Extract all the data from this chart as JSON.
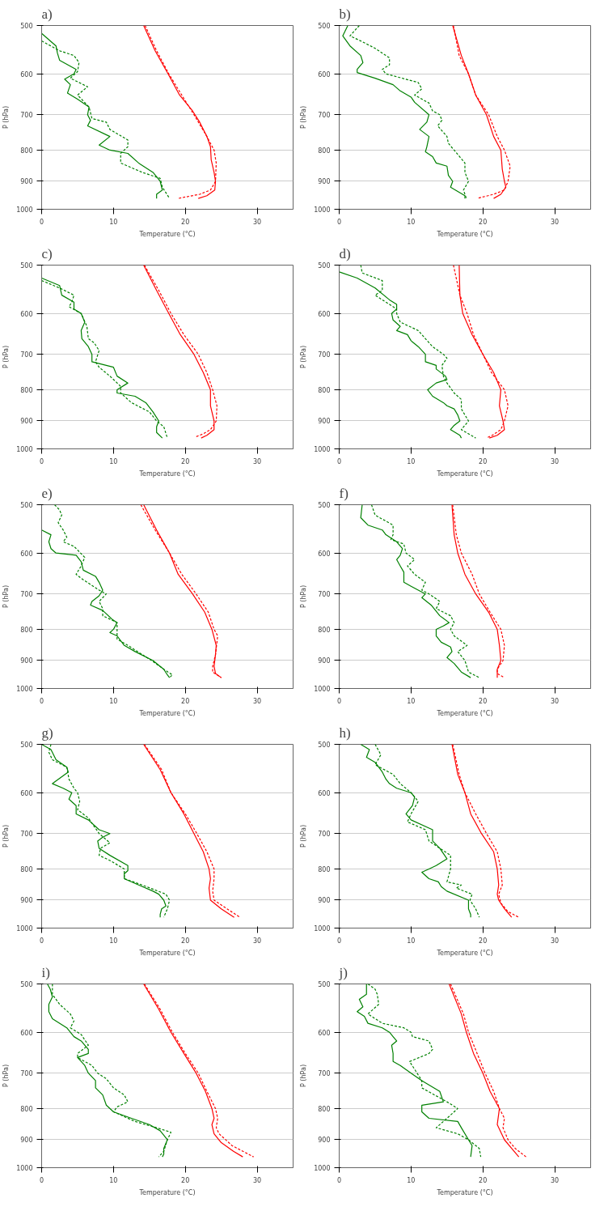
{
  "chart_data": [
    {
      "type": "line",
      "title": "a)",
      "xlabel": "Temperature (°C)",
      "ylabel": "P (hPa)",
      "xlim": [
        0,
        35
      ],
      "xticks": [
        0,
        10,
        20,
        30
      ],
      "ylim": [
        1000,
        500
      ],
      "yticks": [
        500,
        600,
        700,
        800,
        900,
        1000
      ],
      "log": "y",
      "grid": "y",
      "series": [
        {
          "color": "#008000",
          "line_style": "solid",
          "x": [
            0,
            2,
            2.2,
            2.5,
            4.8,
            4.5,
            3.2,
            4,
            3.6,
            5,
            6.6,
            6.4,
            6.8,
            6.4,
            9.5,
            8,
            9.5,
            12,
            13.5,
            15.5,
            16.5,
            16.8,
            16,
            16
          ],
          "values": [
            515,
            540,
            555,
            570,
            590,
            600,
            612,
            625,
            645,
            660,
            680,
            700,
            715,
            730,
            760,
            785,
            800,
            810,
            840,
            870,
            900,
            930,
            945,
            960
          ]
        },
        {
          "color": "#008000",
          "line_style": "dashed",
          "x": [
            0,
            2.5,
            4.5,
            5.2,
            5,
            4,
            6.4,
            5,
            6.6,
            7,
            9,
            9.5,
            12,
            12,
            11,
            11,
            14,
            16.5,
            16.8,
            17.8
          ],
          "values": [
            530,
            550,
            560,
            575,
            595,
            610,
            630,
            650,
            680,
            710,
            720,
            740,
            770,
            790,
            810,
            840,
            870,
            890,
            920,
            960
          ]
        },
        {
          "color": "#ff0000",
          "line_style": "solid",
          "x": [
            14.2,
            15.8,
            17.6,
            19.2,
            21,
            22,
            23,
            23.5,
            23.6,
            24,
            24.2,
            24.1,
            23,
            21.8
          ],
          "values": [
            500,
            550,
            600,
            650,
            690,
            720,
            760,
            790,
            830,
            870,
            900,
            930,
            950,
            960
          ]
        },
        {
          "color": "#ff0000",
          "line_style": "dashed",
          "x": [
            14.4,
            16,
            17.7,
            19.5,
            21.2,
            23,
            24,
            24.3,
            24.2,
            23.5,
            22,
            19
          ],
          "values": [
            500,
            550,
            600,
            650,
            700,
            760,
            800,
            840,
            900,
            930,
            945,
            960
          ]
        }
      ]
    },
    {
      "type": "line",
      "title": "b)",
      "xlabel": "Temperature (°C)",
      "ylabel": "P (hPa)",
      "xlim": [
        0,
        35
      ],
      "xticks": [
        0,
        10,
        20,
        30
      ],
      "ylim": [
        1000,
        500
      ],
      "yticks": [
        500,
        600,
        700,
        800,
        900,
        1000
      ],
      "log": "y",
      "grid": "y",
      "series": [
        {
          "color": "#008000",
          "line_style": "solid",
          "x": [
            1.2,
            0.5,
            1.5,
            3,
            3.3,
            2.5,
            2.5,
            5,
            7.5,
            8.5,
            10,
            10.5,
            12.5,
            12.2,
            11.2,
            12.5,
            12.2,
            12,
            13,
            13.5,
            15,
            15.2,
            15.8,
            15.5,
            17.5,
            17.5
          ],
          "values": [
            500,
            520,
            540,
            560,
            575,
            590,
            597,
            610,
            625,
            640,
            655,
            668,
            700,
            720,
            740,
            760,
            790,
            805,
            820,
            840,
            850,
            880,
            900,
            920,
            950,
            960
          ]
        },
        {
          "color": "#008000",
          "line_style": "dashed",
          "x": [
            2.8,
            1.5,
            3,
            5,
            7,
            7,
            6,
            6.5,
            11,
            11.5,
            10.5,
            12.5,
            13,
            14,
            14.3,
            13.7,
            15,
            15.2,
            16,
            17.5,
            17.5,
            18,
            17.3,
            17.7
          ],
          "values": [
            500,
            520,
            530,
            545,
            565,
            580,
            590,
            600,
            620,
            635,
            650,
            670,
            690,
            700,
            715,
            730,
            760,
            780,
            800,
            840,
            870,
            900,
            930,
            960
          ]
        },
        {
          "color": "#ff0000",
          "line_style": "solid",
          "x": [
            15.8,
            17,
            18,
            19,
            20.5,
            21.5,
            22.5,
            22.7,
            23,
            23.2,
            22.5,
            21.5
          ],
          "values": [
            500,
            560,
            600,
            650,
            700,
            760,
            800,
            860,
            900,
            920,
            945,
            960
          ]
        },
        {
          "color": "#ff0000",
          "line_style": "dashed",
          "x": [
            15.9,
            16.7,
            18,
            19,
            20.8,
            22,
            23,
            23.8,
            23.5,
            23,
            21.5,
            19.2
          ],
          "values": [
            500,
            560,
            600,
            650,
            700,
            760,
            800,
            850,
            900,
            930,
            945,
            960
          ]
        }
      ]
    },
    {
      "type": "line",
      "title": "c)",
      "xlabel": "Temperature (°C)",
      "ylabel": "P (hPa)",
      "xlim": [
        0,
        35
      ],
      "xticks": [
        0,
        10,
        20,
        30
      ],
      "ylim": [
        1000,
        500
      ],
      "yticks": [
        500,
        600,
        700,
        800,
        900,
        1000
      ],
      "log": "y",
      "grid": "y",
      "series": [
        {
          "color": "#008000",
          "line_style": "solid",
          "x": [
            0,
            2.5,
            2.8,
            4.5,
            4.5,
            5.5,
            6,
            5.5,
            5.6,
            6.5,
            7,
            7,
            10,
            10.5,
            12,
            10.5,
            10.5,
            13,
            14.5,
            15.5,
            16.3,
            16,
            16,
            16.8
          ],
          "values": [
            525,
            540,
            560,
            575,
            590,
            600,
            620,
            640,
            660,
            680,
            700,
            720,
            735,
            760,
            780,
            800,
            810,
            820,
            840,
            870,
            900,
            920,
            940,
            960
          ]
        },
        {
          "color": "#008000",
          "line_style": "dashed",
          "x": [
            0,
            2.5,
            4.5,
            4.2,
            3.8,
            5.5,
            6.3,
            6.5,
            7.3,
            8,
            7.5,
            8,
            9.5,
            11,
            11,
            12.5,
            15,
            16,
            17,
            17.5
          ],
          "values": [
            530,
            545,
            560,
            575,
            585,
            600,
            630,
            660,
            670,
            690,
            720,
            735,
            760,
            790,
            810,
            840,
            870,
            900,
            920,
            960
          ]
        },
        {
          "color": "#ff0000",
          "line_style": "solid",
          "x": [
            14.2,
            16,
            17.7,
            19.3,
            21.2,
            22.5,
            23.5,
            23.5,
            24,
            24,
            23,
            22.2
          ],
          "values": [
            500,
            550,
            600,
            650,
            700,
            750,
            800,
            850,
            900,
            930,
            950,
            960
          ]
        },
        {
          "color": "#ff0000",
          "line_style": "dashed",
          "x": [
            14.3,
            16.3,
            18,
            19.8,
            21.8,
            23,
            23.8,
            24.4,
            24.3,
            23.5,
            22.5,
            21.5
          ],
          "values": [
            500,
            550,
            600,
            650,
            700,
            750,
            800,
            850,
            900,
            930,
            945,
            955
          ]
        }
      ]
    },
    {
      "type": "line",
      "title": "d)",
      "xlabel": "Temperature (°C)",
      "ylabel": "P (hPa)",
      "xlim": [
        0,
        35
      ],
      "xticks": [
        0,
        10,
        20,
        30
      ],
      "ylim": [
        1000,
        500
      ],
      "yticks": [
        500,
        600,
        700,
        800,
        900,
        1000
      ],
      "log": "y",
      "grid": "y",
      "series": [
        {
          "color": "#008000",
          "line_style": "solid",
          "x": [
            0,
            2.5,
            5,
            7,
            8,
            8,
            7.3,
            7.5,
            8.5,
            8,
            9.5,
            10,
            11,
            12,
            12,
            13.5,
            13.5,
            14.8,
            15,
            13.5,
            12.3,
            13,
            14.5,
            15,
            16,
            16.5,
            16.8,
            16,
            15.5,
            16.8,
            17
          ],
          "values": [
            513,
            525,
            545,
            570,
            580,
            590,
            600,
            615,
            630,
            640,
            650,
            665,
            680,
            700,
            720,
            730,
            740,
            760,
            770,
            780,
            800,
            820,
            840,
            850,
            860,
            880,
            900,
            915,
            930,
            950,
            960
          ]
        },
        {
          "color": "#008000",
          "line_style": "dashed",
          "x": [
            3,
            3.2,
            6,
            6,
            5,
            6,
            8,
            8,
            8.5,
            11,
            12,
            13,
            14.5,
            15,
            14.3,
            14.5,
            15,
            16,
            17,
            17,
            17.5,
            18,
            17,
            19
          ],
          "values": [
            500,
            515,
            530,
            550,
            560,
            570,
            590,
            600,
            620,
            640,
            660,
            680,
            700,
            710,
            730,
            760,
            780,
            810,
            830,
            860,
            880,
            900,
            930,
            960
          ]
        },
        {
          "color": "#ff0000",
          "line_style": "solid",
          "x": [
            16.7,
            16.8,
            17.2,
            18.5,
            20,
            21.5,
            22.5,
            22.3,
            22.8,
            23,
            22,
            20.9
          ],
          "values": [
            500,
            560,
            600,
            650,
            700,
            750,
            800,
            850,
            900,
            930,
            950,
            960
          ]
        },
        {
          "color": "#ff0000",
          "line_style": "dashed",
          "x": [
            15.9,
            16.8,
            17.8,
            18.7,
            20,
            21.2,
            23,
            23.5,
            23,
            22.5,
            21.3,
            20.5
          ],
          "values": [
            500,
            560,
            600,
            650,
            700,
            750,
            800,
            850,
            900,
            930,
            950,
            960
          ]
        }
      ]
    },
    {
      "type": "line",
      "title": "e)",
      "xlabel": "Temperature (°C)",
      "ylabel": "P (hPa)",
      "xlim": [
        0,
        35
      ],
      "xticks": [
        0,
        10,
        20,
        30
      ],
      "ylim": [
        1000,
        500
      ],
      "yticks": [
        500,
        600,
        700,
        800,
        900,
        1000
      ],
      "log": "y",
      "grid": "y",
      "series": [
        {
          "color": "#008000",
          "line_style": "solid",
          "x": [
            0,
            1.3,
            1,
            1.3,
            2,
            4.8,
            5.5,
            5.8,
            7.5,
            8,
            8.5,
            8,
            7,
            6.8,
            8.5,
            9.8,
            10.5,
            10,
            9.5,
            10.5,
            11.5,
            13,
            15.5,
            16.5,
            17,
            17.5,
            17.8
          ],
          "values": [
            550,
            560,
            575,
            590,
            600,
            605,
            620,
            640,
            655,
            670,
            690,
            705,
            720,
            730,
            745,
            770,
            780,
            800,
            810,
            820,
            850,
            870,
            900,
            920,
            930,
            950,
            960
          ]
        },
        {
          "color": "#008000",
          "line_style": "dashed",
          "x": [
            1.8,
            2.5,
            2.8,
            2.3,
            3,
            3.5,
            3,
            4.5,
            6,
            5.5,
            4.8,
            5.5,
            8,
            9,
            8,
            8.5,
            8.5,
            10.5,
            10.5,
            10.5,
            12,
            14,
            15.3,
            17,
            18.2,
            17.8
          ],
          "values": [
            500,
            510,
            520,
            535,
            550,
            565,
            575,
            585,
            610,
            630,
            650,
            660,
            690,
            700,
            720,
            740,
            760,
            780,
            800,
            830,
            850,
            880,
            900,
            930,
            950,
            960
          ]
        },
        {
          "color": "#ff0000",
          "line_style": "solid",
          "x": [
            14.2,
            16,
            17.8,
            19,
            21,
            22.7,
            23.7,
            24.3,
            24.2,
            24,
            24.2,
            25
          ],
          "values": [
            500,
            550,
            600,
            650,
            700,
            750,
            800,
            850,
            880,
            920,
            945,
            960
          ]
        },
        {
          "color": "#ff0000",
          "line_style": "dashed",
          "x": [
            13.8,
            15.8,
            17.8,
            19.5,
            21.5,
            23.2,
            24,
            24.5,
            24.2,
            23.8,
            23.8,
            25
          ],
          "values": [
            500,
            550,
            600,
            650,
            700,
            750,
            800,
            820,
            880,
            920,
            940,
            960
          ]
        }
      ]
    },
    {
      "type": "line",
      "title": "f)",
      "xlabel": "Temperature (°C)",
      "ylabel": "P (hPa)",
      "xlim": [
        0,
        35
      ],
      "xticks": [
        0,
        10,
        20,
        30
      ],
      "ylim": [
        1000,
        500
      ],
      "yticks": [
        500,
        600,
        700,
        800,
        900,
        1000
      ],
      "log": "y",
      "grid": "y",
      "series": [
        {
          "color": "#008000",
          "line_style": "solid",
          "x": [
            3.2,
            3,
            4,
            6,
            6.5,
            8,
            8.8,
            8.5,
            8,
            8.5,
            9,
            9,
            10,
            12,
            11.5,
            12.8,
            14,
            15.3,
            14.5,
            13.5,
            13.5,
            14.2,
            15.5,
            15.7,
            15,
            16,
            17,
            18.3
          ],
          "values": [
            500,
            525,
            540,
            550,
            560,
            575,
            590,
            605,
            615,
            630,
            645,
            670,
            680,
            700,
            710,
            730,
            760,
            780,
            790,
            800,
            820,
            840,
            855,
            870,
            890,
            910,
            940,
            960
          ]
        },
        {
          "color": "#008000",
          "line_style": "dashed",
          "x": [
            4.5,
            5,
            7.5,
            7.5,
            7.2,
            9,
            9.3,
            10.5,
            9.5,
            10.5,
            12,
            11.5,
            12.5,
            14,
            13.5,
            15.5,
            16,
            15.5,
            16,
            17.8,
            16.5,
            17.5,
            18,
            19.5
          ],
          "values": [
            500,
            520,
            540,
            560,
            570,
            580,
            600,
            615,
            630,
            650,
            670,
            690,
            700,
            720,
            740,
            760,
            780,
            800,
            820,
            850,
            870,
            900,
            940,
            960
          ]
        },
        {
          "color": "#ff0000",
          "line_style": "solid",
          "x": [
            15.7,
            16,
            16.5,
            17.5,
            19,
            20.8,
            22,
            22.3,
            22.5,
            22,
            22
          ],
          "values": [
            500,
            560,
            600,
            650,
            700,
            750,
            800,
            850,
            900,
            930,
            960
          ]
        },
        {
          "color": "#ff0000",
          "line_style": "dashed",
          "x": [
            15.8,
            16.3,
            17,
            18.5,
            19.5,
            21,
            22.5,
            23,
            22.8,
            22,
            22,
            23
          ],
          "values": [
            500,
            560,
            600,
            650,
            700,
            750,
            800,
            850,
            900,
            930,
            945,
            960
          ]
        }
      ]
    },
    {
      "type": "line",
      "title": "g)",
      "xlabel": "Temperature (°C)",
      "ylabel": "P (hPa)",
      "xlim": [
        0,
        35
      ],
      "xticks": [
        0,
        10,
        20,
        30
      ],
      "ylim": [
        1000,
        500
      ],
      "yticks": [
        500,
        600,
        700,
        800,
        900,
        1000
      ],
      "log": "y",
      "grid": "y",
      "series": [
        {
          "color": "#008000",
          "line_style": "solid",
          "x": [
            0,
            1.3,
            2,
            3.5,
            3.7,
            1.5,
            3,
            4.2,
            3.8,
            4.8,
            4.8,
            6.5,
            8,
            9.5,
            8.5,
            7.8,
            8,
            9.5,
            12,
            12,
            11.5,
            11.5,
            13.5,
            15.5,
            16.3,
            17,
            17.3,
            16.7,
            16.5,
            16.5
          ],
          "values": [
            500,
            510,
            530,
            545,
            555,
            580,
            590,
            600,
            615,
            630,
            650,
            665,
            690,
            700,
            710,
            720,
            740,
            760,
            790,
            805,
            815,
            830,
            850,
            870,
            880,
            900,
            920,
            930,
            950,
            960
          ]
        },
        {
          "color": "#008000",
          "line_style": "dashed",
          "x": [
            1.3,
            1,
            1.5,
            3.5,
            3.8,
            4.5,
            5,
            5.3,
            5,
            6.5,
            8,
            9.5,
            8.2,
            8,
            9.5,
            11.5,
            11.5,
            14,
            17.3,
            17.8,
            17.5,
            17
          ],
          "values": [
            500,
            515,
            530,
            545,
            570,
            590,
            600,
            620,
            640,
            660,
            700,
            725,
            740,
            760,
            775,
            800,
            830,
            850,
            880,
            900,
            930,
            960
          ]
        },
        {
          "color": "#ff0000",
          "line_style": "solid",
          "x": [
            14.2,
            16.5,
            18,
            19.8,
            21.2,
            22.5,
            23.3,
            23.5,
            23.3,
            23.5,
            25,
            26.8
          ],
          "values": [
            500,
            550,
            600,
            650,
            700,
            750,
            800,
            830,
            860,
            900,
            930,
            960
          ]
        },
        {
          "color": "#ff0000",
          "line_style": "dashed",
          "x": [
            14.3,
            16.7,
            18,
            20,
            21.6,
            23,
            24,
            24,
            23.8,
            24,
            25.8,
            27.6
          ],
          "values": [
            500,
            550,
            600,
            650,
            700,
            750,
            800,
            830,
            870,
            900,
            930,
            960
          ]
        }
      ]
    },
    {
      "type": "line",
      "title": "h)",
      "xlabel": "Temperature (°C)",
      "ylabel": "P (hPa)",
      "xlim": [
        0,
        35
      ],
      "xticks": [
        0,
        10,
        20,
        30
      ],
      "ylim": [
        1000,
        500
      ],
      "yticks": [
        500,
        600,
        700,
        800,
        900,
        1000
      ],
      "log": "y",
      "grid": "y",
      "series": [
        {
          "color": "#008000",
          "line_style": "solid",
          "x": [
            3,
            4.2,
            3.8,
            5,
            6,
            6.5,
            7,
            8,
            10,
            10.5,
            10.2,
            9.3,
            10,
            13,
            13,
            13,
            14,
            15,
            13.5,
            12.5,
            11.5,
            12.5,
            13.8,
            14.2,
            15,
            18,
            18,
            18.3,
            18.3
          ],
          "values": [
            500,
            510,
            525,
            535,
            555,
            570,
            580,
            590,
            600,
            610,
            630,
            650,
            665,
            690,
            700,
            720,
            740,
            770,
            790,
            800,
            810,
            830,
            840,
            855,
            870,
            900,
            930,
            950,
            960
          ]
        },
        {
          "color": "#008000",
          "line_style": "dashed",
          "x": [
            5,
            5.8,
            5,
            7.5,
            8.5,
            10,
            11,
            10,
            9.5,
            12,
            12.5,
            14,
            15.5,
            15.5,
            15,
            17,
            16.3,
            18.5,
            18.2,
            19,
            19.5
          ],
          "values": [
            500,
            520,
            540,
            560,
            580,
            600,
            620,
            650,
            670,
            690,
            720,
            740,
            760,
            800,
            840,
            850,
            860,
            880,
            900,
            930,
            960
          ]
        },
        {
          "color": "#ff0000",
          "line_style": "solid",
          "x": [
            15.7,
            16.5,
            17.5,
            18.3,
            19.8,
            21.5,
            22,
            22.2,
            22,
            22.2,
            23,
            24
          ],
          "values": [
            500,
            560,
            600,
            650,
            700,
            750,
            800,
            850,
            880,
            900,
            930,
            960
          ]
        },
        {
          "color": "#ff0000",
          "line_style": "dashed",
          "x": [
            15.8,
            16.7,
            17.5,
            19,
            20.5,
            22,
            22.5,
            22.7,
            22.2,
            22.5,
            23.5,
            25
          ],
          "values": [
            500,
            560,
            600,
            650,
            700,
            750,
            800,
            850,
            880,
            910,
            940,
            960
          ]
        }
      ]
    },
    {
      "type": "line",
      "title": "i)",
      "xlabel": "Temperature (°C)",
      "ylabel": "P (hPa)",
      "xlim": [
        0,
        35
      ],
      "xticks": [
        0,
        10,
        20,
        30
      ],
      "ylim": [
        1000,
        500
      ],
      "yticks": [
        500,
        600,
        700,
        800,
        900,
        1000
      ],
      "log": "y",
      "grid": "y",
      "series": [
        {
          "color": "#008000",
          "line_style": "solid",
          "x": [
            0.8,
            1.2,
            1.5,
            1,
            1,
            1.5,
            3.5,
            4.5,
            5.5,
            6.5,
            6.5,
            5,
            6,
            6.5,
            7.5,
            7.5,
            8.5,
            9,
            10,
            12.5,
            15,
            16.5,
            17.5,
            17,
            17,
            16.8
          ],
          "values": [
            500,
            510,
            525,
            540,
            555,
            570,
            590,
            610,
            620,
            640,
            650,
            660,
            680,
            700,
            720,
            740,
            760,
            790,
            810,
            830,
            850,
            870,
            900,
            930,
            950,
            960
          ]
        },
        {
          "color": "#008000",
          "line_style": "dashed",
          "x": [
            1.5,
            1.5,
            2.5,
            4,
            4.5,
            4,
            5.5,
            6.5,
            5,
            5,
            7,
            7.8,
            9,
            10,
            11.5,
            12,
            10.5,
            10,
            13,
            16,
            18,
            17.5,
            17,
            16.3
          ],
          "values": [
            500,
            520,
            540,
            560,
            575,
            590,
            605,
            630,
            650,
            660,
            680,
            700,
            715,
            740,
            760,
            780,
            795,
            810,
            840,
            860,
            875,
            900,
            940,
            960
          ]
        },
        {
          "color": "#ff0000",
          "line_style": "solid",
          "x": [
            14.2,
            16.3,
            18,
            19.8,
            21.5,
            22.8,
            23.7,
            24,
            23.7,
            24,
            25,
            26.7,
            28
          ],
          "values": [
            500,
            550,
            600,
            650,
            700,
            750,
            800,
            830,
            850,
            880,
            910,
            940,
            960
          ]
        },
        {
          "color": "#ff0000",
          "line_style": "dashed",
          "x": [
            14.3,
            16.5,
            18.2,
            20,
            21.8,
            23,
            24.2,
            24.5,
            24.3,
            24.7,
            26.5,
            29.5
          ],
          "values": [
            500,
            550,
            600,
            650,
            700,
            750,
            800,
            830,
            860,
            880,
            920,
            960
          ]
        }
      ]
    },
    {
      "type": "line",
      "title": "j)",
      "xlabel": "Temperature (°C)",
      "ylabel": "P (hPa)",
      "xlim": [
        0,
        35
      ],
      "xticks": [
        0,
        10,
        20,
        30
      ],
      "ylim": [
        1000,
        500
      ],
      "yticks": [
        500,
        600,
        700,
        800,
        900,
        1000
      ],
      "log": "y",
      "grid": "y",
      "series": [
        {
          "color": "#008000",
          "line_style": "solid",
          "x": [
            3.8,
            3.8,
            2.8,
            3.3,
            2.5,
            3.5,
            4,
            6,
            7,
            7.5,
            8,
            7.3,
            7.5,
            7.5,
            8.5,
            10,
            11.5,
            14,
            14.5,
            11.5,
            11.5,
            12.5,
            16.5,
            17,
            18,
            18.5,
            18.3
          ],
          "values": [
            500,
            520,
            530,
            545,
            555,
            565,
            580,
            590,
            600,
            610,
            620,
            630,
            650,
            670,
            680,
            700,
            720,
            750,
            780,
            790,
            810,
            830,
            840,
            860,
            900,
            920,
            960
          ]
        },
        {
          "color": "#008000",
          "line_style": "dashed",
          "x": [
            4,
            5,
            5.3,
            5.5,
            4,
            6,
            9,
            10,
            10.2,
            12.5,
            13,
            12.5,
            9.8,
            10.5,
            11.5,
            11.5,
            15,
            16.5,
            15,
            13.5,
            16.5,
            18,
            19.5,
            19.7
          ],
          "values": [
            500,
            510,
            520,
            540,
            560,
            580,
            590,
            600,
            610,
            620,
            640,
            650,
            670,
            690,
            720,
            740,
            780,
            800,
            830,
            860,
            880,
            900,
            930,
            960
          ]
        },
        {
          "color": "#ff0000",
          "line_style": "solid",
          "x": [
            15.3,
            17,
            17.7,
            18.7,
            20,
            21,
            22.3,
            22,
            23,
            24,
            25
          ],
          "values": [
            500,
            560,
            600,
            650,
            700,
            750,
            800,
            850,
            900,
            930,
            960
          ]
        },
        {
          "color": "#ff0000",
          "line_style": "dashed",
          "x": [
            15.5,
            17.3,
            18,
            19.2,
            20.3,
            21.5,
            22.3,
            23,
            22.8,
            23.5,
            24.5,
            26
          ],
          "values": [
            500,
            560,
            600,
            650,
            700,
            750,
            800,
            830,
            860,
            900,
            930,
            960
          ]
        }
      ]
    }
  ]
}
